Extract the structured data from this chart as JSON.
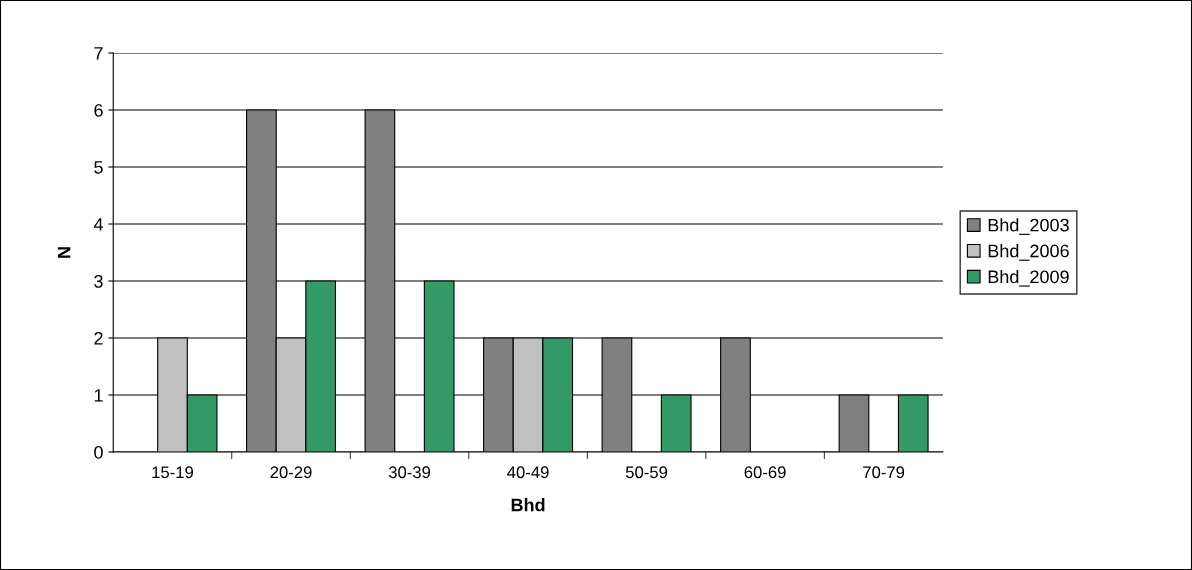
{
  "chart_data": {
    "type": "bar",
    "xlabel": "Bhd",
    "ylabel": "N",
    "categories": [
      "15-19",
      "20-29",
      "30-39",
      "40-49",
      "50-59",
      "60-69",
      "70-79"
    ],
    "series": [
      {
        "name": "Bhd_2003",
        "color": "#808080",
        "values": [
          0,
          6,
          6,
          2,
          2,
          2,
          1
        ]
      },
      {
        "name": "Bhd_2006",
        "color": "#c0c0c0",
        "values": [
          2,
          2,
          0,
          2,
          0,
          0,
          0
        ]
      },
      {
        "name": "Bhd_2009",
        "color": "#339966",
        "values": [
          1,
          3,
          3,
          2,
          1,
          0,
          1
        ]
      }
    ],
    "ylim": [
      0,
      7
    ],
    "yticks": [
      0,
      1,
      2,
      3,
      4,
      5,
      6,
      7
    ],
    "grid": "y",
    "legend": "right"
  }
}
